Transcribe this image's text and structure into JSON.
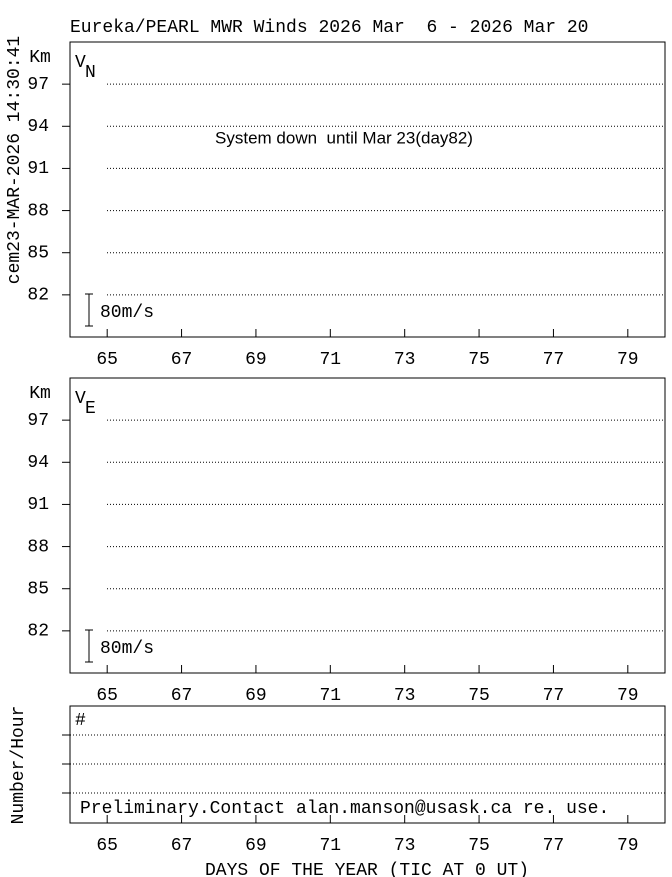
{
  "chart_data": [
    {
      "type": "line",
      "title": "Eureka/PEARL MWR Winds 2026 Mar  6 - 2026 Mar 20",
      "side_label": "cem23-MAR-2026 14:30:41",
      "y_label": "Km",
      "panel_label": "V",
      "panel_subscript": "N",
      "annotation": "System down  until Mar 23(day82)",
      "scale_label": "80m/s",
      "xlim": [
        64,
        80
      ],
      "xticks": [
        65,
        67,
        69,
        71,
        73,
        75,
        77,
        79
      ],
      "ylim": [
        79,
        100
      ],
      "yticks": [
        97,
        94,
        91,
        88,
        85,
        82
      ],
      "grid": true
    },
    {
      "type": "line",
      "y_label": "Km",
      "panel_label": "V",
      "panel_subscript": "E",
      "scale_label": "80m/s",
      "xlim": [
        64,
        80
      ],
      "xticks": [
        65,
        67,
        69,
        71,
        73,
        75,
        77,
        79
      ],
      "ylim": [
        79,
        100
      ],
      "yticks": [
        97,
        94,
        91,
        88,
        85,
        82
      ],
      "grid": true
    },
    {
      "type": "line",
      "y_label": "Number/Hour",
      "panel_label": "#",
      "annotation": "Preliminary.Contact alan.manson@usask.ca re. use.",
      "x_label": "DAYS OF THE YEAR (TIC AT 0 UT)",
      "xlim": [
        64,
        80
      ],
      "xticks": [
        65,
        67,
        69,
        71,
        73,
        75,
        77,
        79
      ]
    }
  ]
}
